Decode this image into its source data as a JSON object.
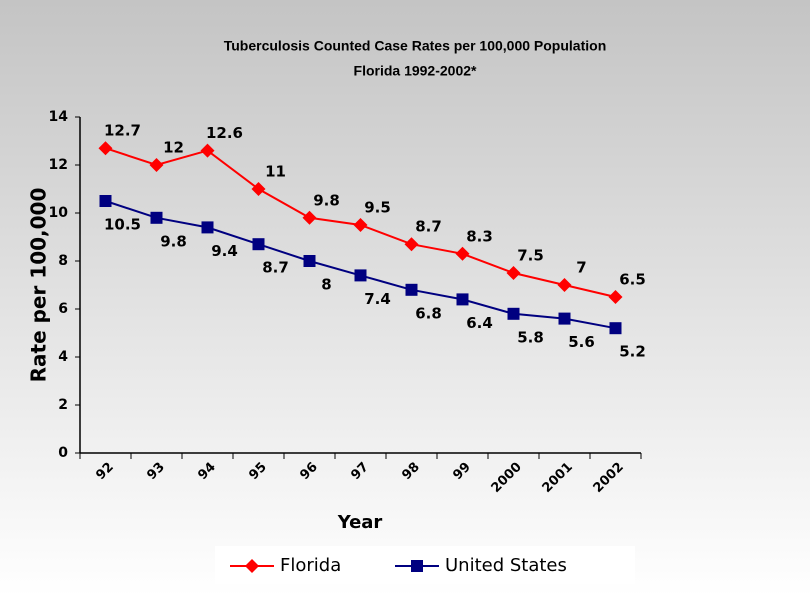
{
  "chart_data": {
    "type": "line",
    "title": "Tuberculosis Counted Case Rates per 100,000 Population",
    "subtitle": "Florida 1992-2002*",
    "x_label": "Year",
    "y_label": "Rate per 100,000",
    "categories": [
      "92",
      "93",
      "94",
      "95",
      "96",
      "97",
      "98",
      "99",
      "2000",
      "2001",
      "2002"
    ],
    "series": [
      {
        "name": "Florida",
        "color": "#ff0000",
        "marker": "diamond",
        "values": [
          12.7,
          12,
          12.6,
          11,
          9.8,
          9.5,
          8.7,
          8.3,
          7.5,
          7,
          6.5
        ]
      },
      {
        "name": "United States",
        "color": "#000080",
        "marker": "square",
        "values": [
          10.5,
          9.8,
          9.4,
          8.7,
          8,
          7.4,
          6.8,
          6.4,
          5.8,
          5.6,
          5.2
        ]
      }
    ],
    "ylim": [
      0,
      14
    ],
    "yticks": [
      0,
      2,
      4,
      6,
      8,
      10,
      12,
      14
    ],
    "grid": false,
    "legend": "bottom"
  }
}
